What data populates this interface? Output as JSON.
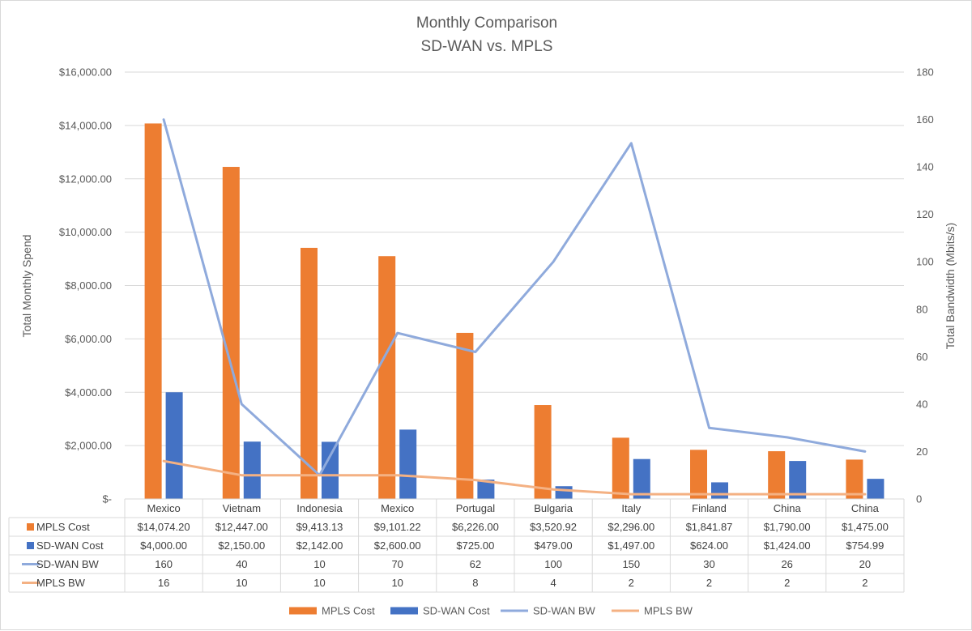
{
  "chart_data": {
    "type": "bar",
    "title": "Monthly Comparison",
    "subtitle": "SD-WAN vs. MPLS",
    "ylabel": "Total Monthly Spend",
    "y2label": "Total Bandwidth (Mbits/s)",
    "ylim": [
      0,
      16000
    ],
    "y2lim": [
      0,
      180
    ],
    "y_ticks": [
      "$-",
      "$2,000.00",
      "$4,000.00",
      "$6,000.00",
      "$8,000.00",
      "$10,000.00",
      "$12,000.00",
      "$14,000.00",
      "$16,000.00"
    ],
    "y2_ticks": [
      "0",
      "20",
      "40",
      "60",
      "80",
      "100",
      "120",
      "140",
      "160",
      "180"
    ],
    "categories": [
      "Mexico",
      "Vietnam",
      "Indonesia",
      "Mexico",
      "Portugal",
      "Bulgaria",
      "Italy",
      "Finland",
      "China",
      "China"
    ],
    "series": [
      {
        "name": "MPLS Cost",
        "kind": "bar",
        "axis": "left",
        "color": "#ED7D31",
        "values": [
          14074.2,
          12447.0,
          9413.13,
          9101.22,
          6226.0,
          3520.92,
          2296.0,
          1841.87,
          1790.0,
          1475.0
        ],
        "labels": [
          "$14,074.20",
          "$12,447.00",
          "$9,413.13",
          "$9,101.22",
          "$6,226.00",
          "$3,520.92",
          "$2,296.00",
          "$1,841.87",
          "$1,790.00",
          "$1,475.00"
        ]
      },
      {
        "name": "SD-WAN Cost",
        "kind": "bar",
        "axis": "left",
        "color": "#4472C4",
        "values": [
          4000.0,
          2150.0,
          2142.0,
          2600.0,
          725.0,
          479.0,
          1497.0,
          624.0,
          1424.0,
          754.99
        ],
        "labels": [
          "$4,000.00",
          "$2,150.00",
          "$2,142.00",
          "$2,600.00",
          "$725.00",
          "$479.00",
          "$1,497.00",
          "$624.00",
          "$1,424.00",
          "$754.99"
        ]
      },
      {
        "name": "SD-WAN BW",
        "kind": "line",
        "axis": "right",
        "color": "#8FAADC",
        "values": [
          160,
          40,
          10,
          70,
          62,
          100,
          150,
          30,
          26,
          20
        ],
        "labels": [
          "160",
          "40",
          "10",
          "70",
          "62",
          "100",
          "150",
          "30",
          "26",
          "20"
        ]
      },
      {
        "name": "MPLS BW",
        "kind": "line",
        "axis": "right",
        "color": "#F4B183",
        "values": [
          16,
          10,
          10,
          10,
          8,
          4,
          2,
          2,
          2,
          2
        ],
        "labels": [
          "16",
          "10",
          "10",
          "10",
          "8",
          "4",
          "2",
          "2",
          "2",
          "2"
        ]
      }
    ],
    "legend_position": "bottom",
    "data_table": true
  }
}
